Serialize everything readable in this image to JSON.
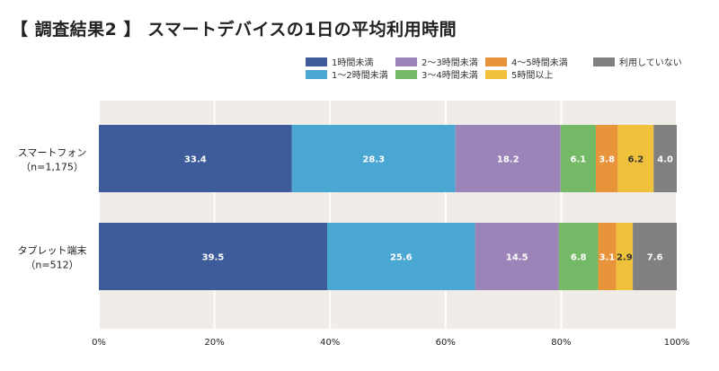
{
  "title": "【 調査結果2 】 スマートデバイスの1日の平均利用時間",
  "chart_data": {
    "type": "bar",
    "orientation": "horizontal",
    "stacked": true,
    "percent_stacked": true,
    "categories": [
      {
        "label": "スマートフォン",
        "sublabel": "（n=1,175）"
      },
      {
        "label": "タブレット端末",
        "sublabel": "（n=512）"
      }
    ],
    "series": [
      {
        "name": "1時間未満",
        "color": "#3d5c99",
        "values": [
          33.4,
          39.5
        ]
      },
      {
        "name": "1〜2時間未満",
        "color": "#4aa7d4",
        "values": [
          28.3,
          25.6
        ]
      },
      {
        "name": "2〜3時間未満",
        "color": "#9b85b8",
        "values": [
          18.2,
          14.5
        ]
      },
      {
        "name": "3〜4時間未満",
        "color": "#73b966",
        "values": [
          6.1,
          6.8
        ]
      },
      {
        "name": "4〜5時間未満",
        "color": "#e8943a",
        "values": [
          3.8,
          3.1
        ]
      },
      {
        "name": "5時間以上",
        "color": "#f0c23c",
        "values": [
          6.2,
          2.9
        ]
      },
      {
        "name": "利用していない",
        "color": "#808080",
        "values": [
          4.0,
          7.6
        ]
      }
    ],
    "xlim": [
      0,
      100
    ],
    "x_ticks": [
      "0%",
      "20%",
      "40%",
      "60%",
      "80%",
      "100%"
    ],
    "grid": true,
    "legend_position": "top-right",
    "plot_background": "#f0ece8"
  }
}
